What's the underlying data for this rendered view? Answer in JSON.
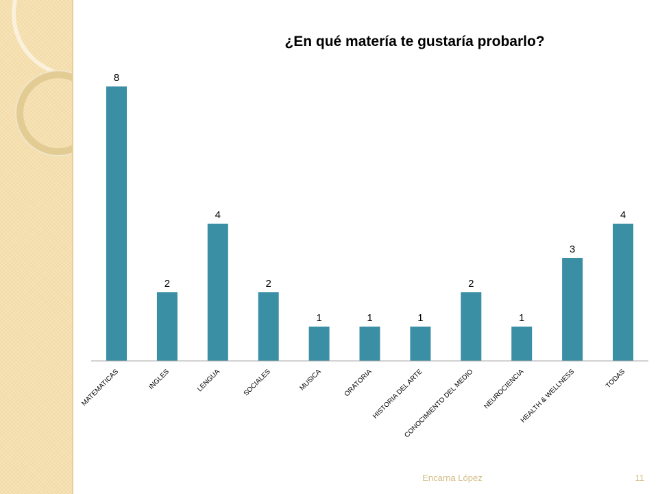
{
  "chart_data": {
    "type": "bar",
    "title": "¿En qué matería te gustaría probarlo?",
    "categories": [
      "MATEMATICAS",
      "INGLES",
      "LENGUA",
      "SOCIALES",
      "MUSICA",
      "ORATORIA",
      "HISTORIA DEL ARTE",
      "CONOCIMIENTO DEL MEDIO",
      "NEUROCIENCIA",
      "HEALTH & WELLNESS",
      "TODAS"
    ],
    "values": [
      8,
      2,
      4,
      2,
      1,
      1,
      1,
      2,
      1,
      3,
      4
    ],
    "ylim": [
      0,
      8
    ],
    "xlabel": "",
    "ylabel": "",
    "grid": false,
    "legend": "none",
    "bar_color": "#3a8fa5"
  },
  "footer": {
    "author": "Encarna López",
    "page_number": "11"
  },
  "colors": {
    "panel": "#f5dfae",
    "footer_text": "#d2bd85",
    "axis": "#a6a6a6"
  }
}
